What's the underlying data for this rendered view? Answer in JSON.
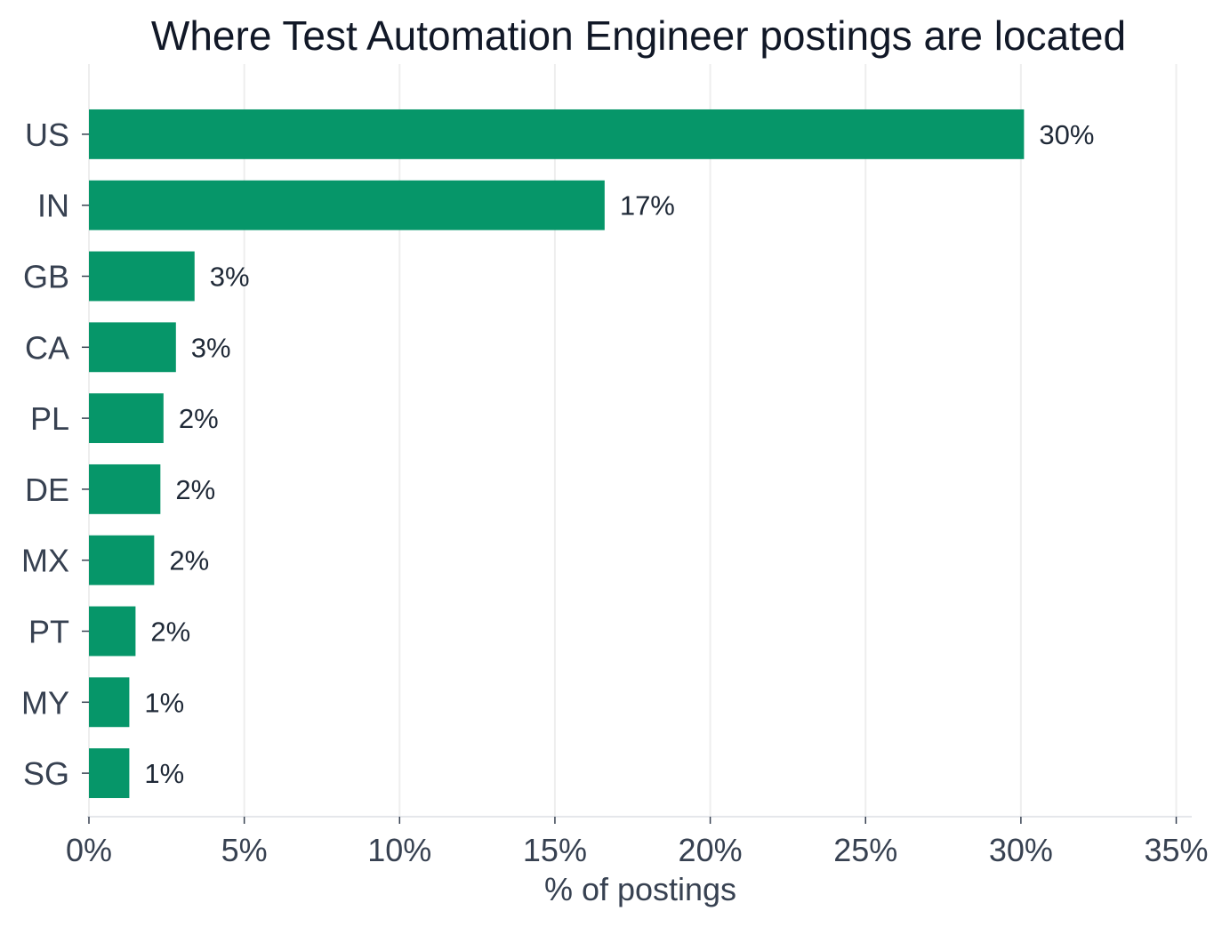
{
  "chart_data": {
    "type": "bar",
    "orientation": "horizontal",
    "title": "Where Test Automation Engineer postings are located",
    "xlabel": "% of postings",
    "ylabel": "",
    "categories": [
      "US",
      "IN",
      "GB",
      "CA",
      "PL",
      "DE",
      "MX",
      "PT",
      "MY",
      "SG"
    ],
    "values": [
      30.1,
      16.6,
      3.4,
      2.8,
      2.4,
      2.3,
      2.1,
      1.5,
      1.3,
      1.3
    ],
    "data_labels": [
      "30%",
      "17%",
      "3%",
      "3%",
      "2%",
      "2%",
      "2%",
      "2%",
      "1%",
      "1%"
    ],
    "xlim": [
      0,
      35.5
    ],
    "xticks": [
      0,
      5,
      10,
      15,
      20,
      25,
      30,
      35
    ],
    "xtick_labels": [
      "0%",
      "5%",
      "10%",
      "15%",
      "20%",
      "25%",
      "30%",
      "35%"
    ],
    "grid": "vertical",
    "bar_color": "#069669"
  }
}
